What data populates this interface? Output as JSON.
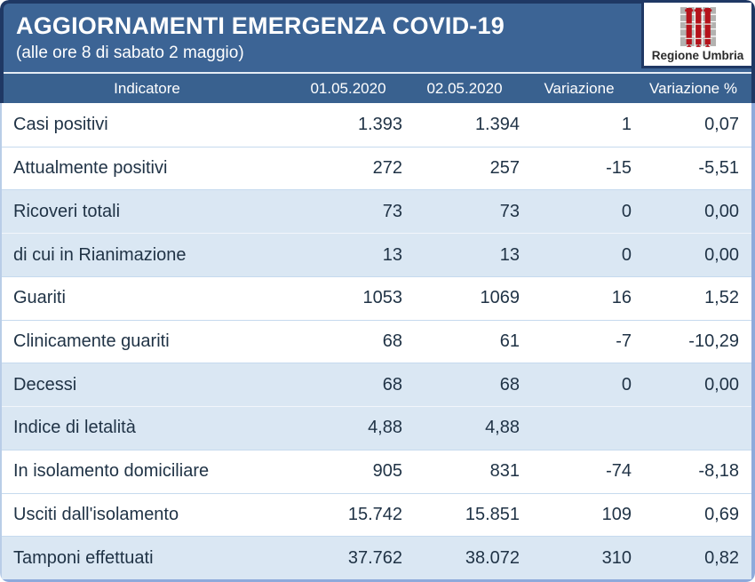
{
  "header": {
    "title": "AGGIORNAMENTI EMERGENZA COVID-19",
    "subtitle": "(alle ore 8 di sabato 2 maggio)"
  },
  "logo": {
    "text": "Regione Umbria"
  },
  "chart_data": {
    "type": "table",
    "title": "AGGIORNAMENTI EMERGENZA COVID-19",
    "subtitle": "(alle ore 8 di sabato 2 maggio)",
    "columns": [
      "Indicatore",
      "01.05.2020",
      "02.05.2020",
      "Variazione",
      "Variazione %"
    ],
    "rows": [
      {
        "label": "Casi positivi",
        "values": [
          "1.393",
          "1.394",
          "1",
          "0,07"
        ],
        "shaded": false
      },
      {
        "label": "Attualmente positivi",
        "values": [
          "272",
          "257",
          "-15",
          "-5,51"
        ],
        "shaded": false
      },
      {
        "label": "Ricoveri totali",
        "values": [
          "73",
          "73",
          "0",
          "0,00"
        ],
        "shaded": true
      },
      {
        "label": "di cui in Rianimazione",
        "values": [
          "13",
          "13",
          "0",
          "0,00"
        ],
        "shaded": true
      },
      {
        "label": "Guariti",
        "values": [
          "1053",
          "1069",
          "16",
          "1,52"
        ],
        "shaded": false
      },
      {
        "label": "Clinicamente guariti",
        "values": [
          "68",
          "61",
          "-7",
          "-10,29"
        ],
        "shaded": false
      },
      {
        "label": "Decessi",
        "values": [
          "68",
          "68",
          "0",
          "0,00"
        ],
        "shaded": true
      },
      {
        "label": "Indice di letalità",
        "values": [
          "4,88",
          "4,88",
          "",
          ""
        ],
        "shaded": true
      },
      {
        "label": "In isolamento domiciliare",
        "values": [
          "905",
          "831",
          "-74",
          "-8,18"
        ],
        "shaded": false
      },
      {
        "label": "Usciti dall'isolamento",
        "values": [
          "15.742",
          "15.851",
          "109",
          "0,69"
        ],
        "shaded": false
      },
      {
        "label": "Tamponi effettuati",
        "values": [
          "37.762",
          "38.072",
          "310",
          "0,82"
        ],
        "shaded": true
      }
    ]
  },
  "colors": {
    "navy_border": "#1F3864",
    "band_blue": "#3C6495",
    "header_row_blue": "#39618F",
    "shaded_row_blue": "#DAE7F3",
    "cell_text": "#1F3245",
    "logo_red": "#B5121B"
  }
}
